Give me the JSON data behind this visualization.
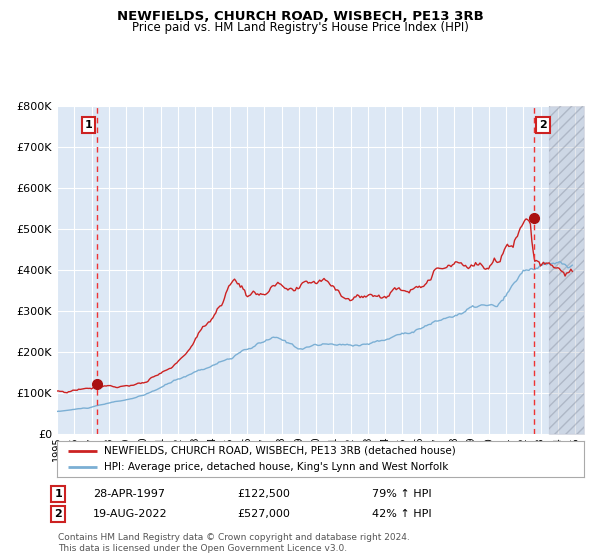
{
  "title": "NEWFIELDS, CHURCH ROAD, WISBECH, PE13 3RB",
  "subtitle": "Price paid vs. HM Land Registry's House Price Index (HPI)",
  "legend_line1": "NEWFIELDS, CHURCH ROAD, WISBECH, PE13 3RB (detached house)",
  "legend_line2": "HPI: Average price, detached house, King's Lynn and West Norfolk",
  "transaction1_date": "28-APR-1997",
  "transaction1_price": "£122,500",
  "transaction1_hpi": "79% ↑ HPI",
  "transaction2_date": "19-AUG-2022",
  "transaction2_price": "£527,000",
  "transaction2_hpi": "42% ↑ HPI",
  "footer": "Contains HM Land Registry data © Crown copyright and database right 2024.\nThis data is licensed under the Open Government Licence v3.0.",
  "hpi_color": "#7bafd4",
  "property_color": "#cc2222",
  "marker_color": "#aa1111",
  "dashed_line_color": "#ee3333",
  "plot_bg_color": "#dde8f5",
  "grid_color": "#ffffff",
  "ylim": [
    0,
    800000
  ],
  "xlim_start": 1995.0,
  "xlim_end": 2025.5,
  "transaction1_x": 1997.32,
  "transaction1_y": 122500,
  "transaction2_x": 2022.63,
  "transaction2_y": 527000
}
